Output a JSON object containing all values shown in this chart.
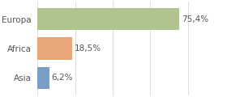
{
  "categories": [
    "Europa",
    "Africa",
    "Asia"
  ],
  "values": [
    75.4,
    18.5,
    6.2
  ],
  "bar_colors": [
    "#afc48e",
    "#e8a87c",
    "#7b9ec9"
  ],
  "labels": [
    "75,4%",
    "18,5%",
    "6,2%"
  ],
  "xlim": [
    0,
    100
  ],
  "background_color": "#ffffff",
  "bar_height": 0.75,
  "label_fontsize": 7.5,
  "tick_fontsize": 7.5,
  "grid_color": "#dddddd",
  "text_color": "#555555"
}
